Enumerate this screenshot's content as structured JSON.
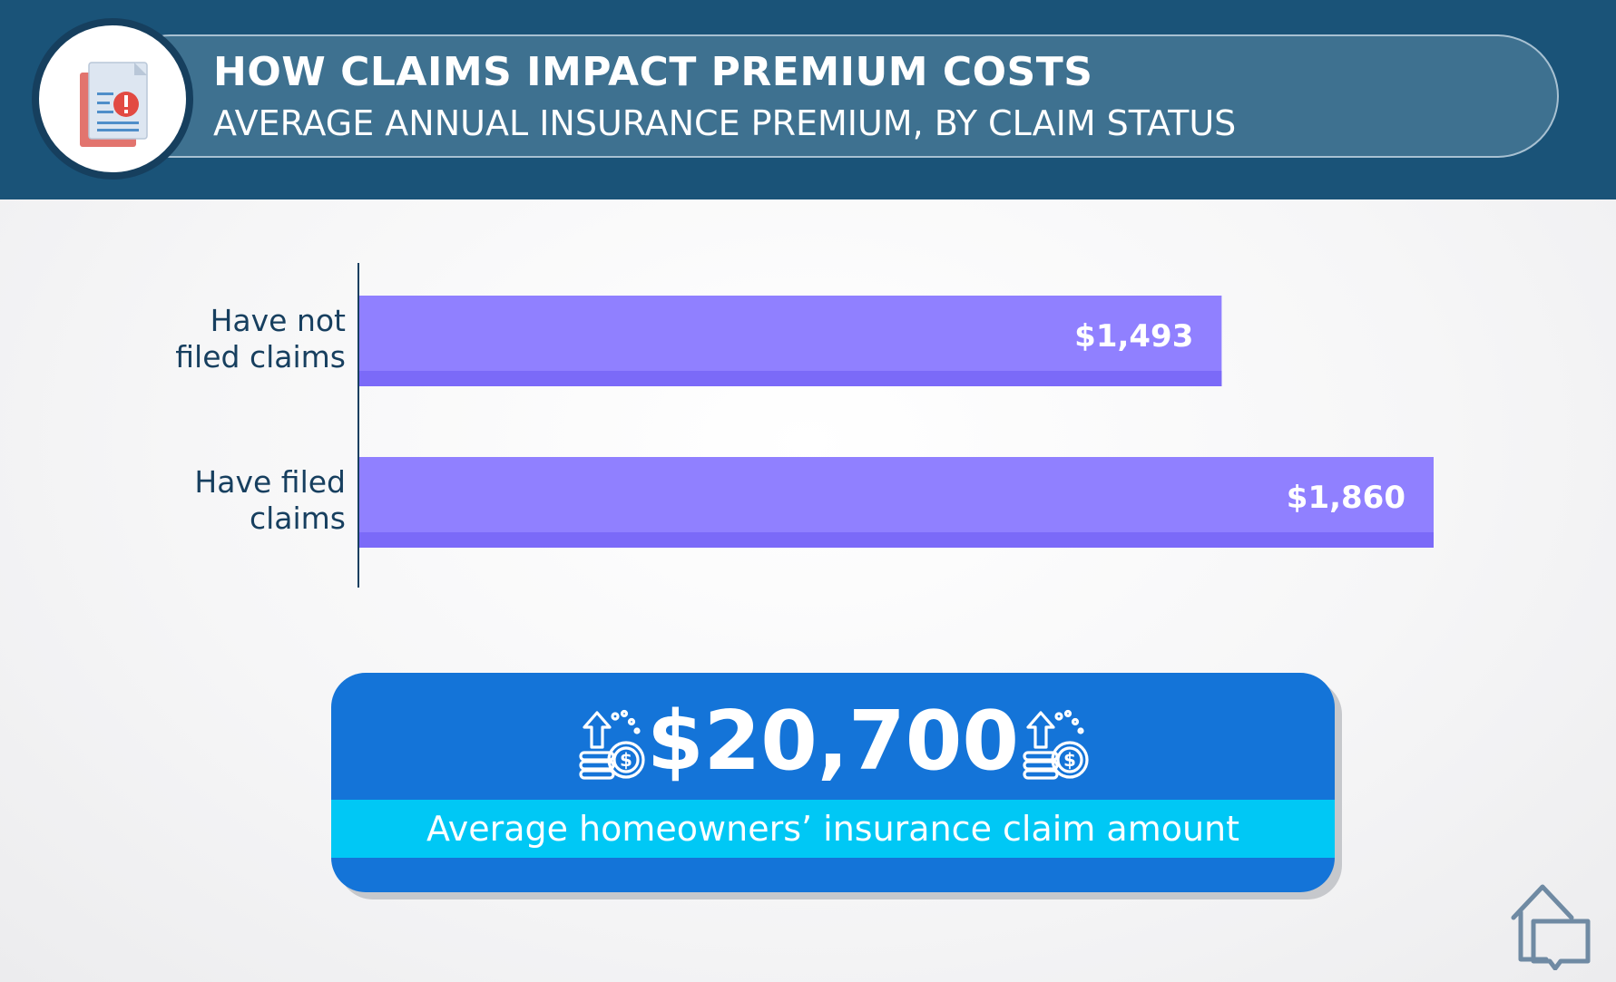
{
  "header": {
    "title": "HOW CLAIMS IMPACT PREMIUM COSTS",
    "subtitle": "AVERAGE ANNUAL INSURANCE PREMIUM, BY CLAIM STATUS",
    "icon": "document-alert-icon"
  },
  "chart_data": {
    "type": "bar",
    "orientation": "horizontal",
    "title": "HOW CLAIMS IMPACT PREMIUM COSTS",
    "subtitle": "AVERAGE ANNUAL INSURANCE PREMIUM, BY CLAIM STATUS",
    "categories": [
      [
        "Have not",
        "filed claims"
      ],
      [
        "Have filed",
        "claims"
      ]
    ],
    "values": [
      1493,
      1860
    ],
    "value_labels": [
      "$1,493",
      "$1,860"
    ],
    "xlim": [
      0,
      1860
    ],
    "grid": false,
    "legend": "none",
    "bar_color": "#9080ff",
    "bar_shade_color": "#7b6af8",
    "axis_color": "#173f5f"
  },
  "stat_card": {
    "value": "$20,700",
    "caption": "Average homeowners’ insurance claim amount",
    "icon": "money-up-icon"
  },
  "branding": {
    "icon": "house-logo-icon"
  },
  "colors": {
    "header_bg": "#1a5378",
    "card_bg": "#1474d8",
    "band_bg": "#00c8f5"
  }
}
